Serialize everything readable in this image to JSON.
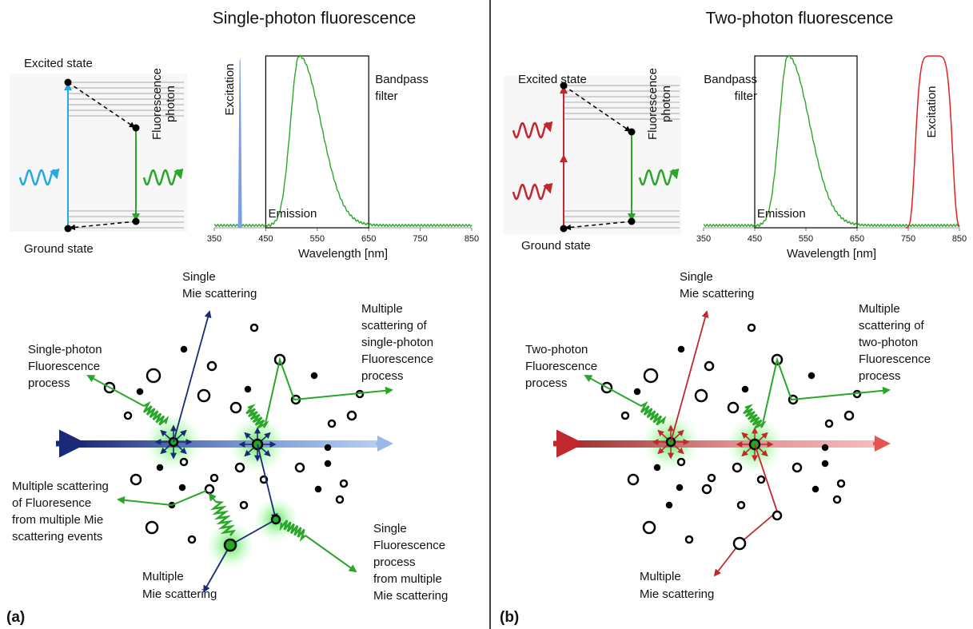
{
  "panels": [
    {
      "label": "(a)",
      "title": "Single-photon fluorescence",
      "energy_diagram": {
        "excited_state": "Excited state",
        "ground_state": "Ground state",
        "photon_label": [
          "Fluorescence",
          "photon"
        ]
      },
      "spectrum": {
        "excitation_label": "Excitation",
        "emission_label": "Emission",
        "filter_label": [
          "Bandpass",
          "filter"
        ],
        "xlabel": "Wavelength  [nm]",
        "xlim": [
          350,
          850
        ],
        "xticks": [
          350,
          450,
          550,
          650,
          750,
          850
        ]
      },
      "scattering": {
        "single_mie": [
          "Single",
          "Mie scattering"
        ],
        "multiple_mie": [
          "Multiple",
          "Mie scattering"
        ],
        "fluorescence_process": [
          "Single-photon",
          "Fluorescence",
          "process"
        ],
        "multiple_fluorescence": [
          "Multiple",
          "scattering of",
          "single-photon",
          "Fluorescence",
          "process"
        ],
        "mie_fluorescence": [
          "Multiple scattering",
          "of Fluoresence",
          "from multiple Mie",
          "scattering events"
        ],
        "single_fluorescence_multiple_mie": [
          "Single",
          "Fluorescence",
          "process",
          "from multiple",
          "Mie scattering"
        ]
      }
    },
    {
      "label": "(b)",
      "title": "Two-photon fluorescence",
      "energy_diagram": {
        "excited_state": "Excited state",
        "ground_state": "Ground state",
        "photon_label": [
          "Fluorescence",
          "photon"
        ]
      },
      "spectrum": {
        "excitation_label": "Excitation",
        "emission_label": "Emission",
        "filter_label": [
          "Bandpass",
          "filter"
        ],
        "xlabel": "Wavelength  [nm]",
        "xlim": [
          350,
          850
        ],
        "xticks": [
          350,
          450,
          550,
          650,
          750,
          850
        ]
      },
      "scattering": {
        "single_mie": [
          "Single",
          "Mie scattering"
        ],
        "multiple_mie": [
          "Multiple",
          "Mie scattering"
        ],
        "fluorescence_process": [
          "Two-photon",
          "Fluorescence",
          "process"
        ],
        "multiple_fluorescence": [
          "Multiple",
          "scattering of",
          "two-photon",
          "Fluorescence",
          "process"
        ]
      }
    }
  ]
}
